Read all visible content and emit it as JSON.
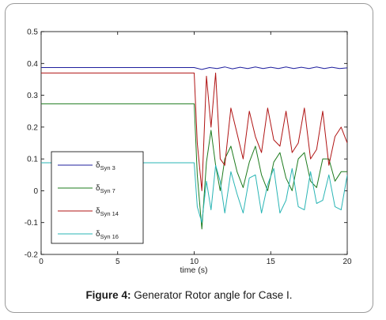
{
  "caption": {
    "label": "Figure 4:",
    "text": " Generator Rotor angle for Case I."
  },
  "chart_data": {
    "type": "line",
    "title": "",
    "xlabel": "time (s)",
    "ylabel": "",
    "xlim": [
      0,
      20
    ],
    "ylim": [
      -0.2,
      0.5
    ],
    "x_ticks": [
      0,
      5,
      10,
      15,
      20
    ],
    "y_ticks": [
      -0.2,
      -0.1,
      0,
      0.1,
      0.2,
      0.3,
      0.4,
      0.5
    ],
    "x_tick_labels": [
      "0",
      "5",
      "10",
      "15",
      "20"
    ],
    "y_tick_labels": [
      "-0.2",
      "-0.1",
      "0",
      "0.1",
      "0.2",
      "0.3",
      "0.4",
      "0.5"
    ],
    "grid": false,
    "legend_position": "lower-left",
    "series": [
      {
        "name": "δ",
        "name_sub": "Syn 3",
        "color": "#1f1f9e",
        "x": [
          0,
          10,
          10.5,
          11.0,
          11.5,
          12.0,
          12.5,
          13.0,
          13.5,
          14.0,
          14.5,
          15.0,
          15.5,
          16.0,
          16.5,
          17.0,
          17.5,
          18.0,
          18.5,
          19.0,
          19.5,
          20.0
        ],
        "y": [
          0.387,
          0.387,
          0.381,
          0.387,
          0.384,
          0.389,
          0.383,
          0.388,
          0.384,
          0.389,
          0.384,
          0.388,
          0.384,
          0.389,
          0.384,
          0.388,
          0.384,
          0.389,
          0.384,
          0.388,
          0.384,
          0.386
        ]
      },
      {
        "name": "δ",
        "name_sub": "Syn 7",
        "color": "#1e7b1e",
        "x": [
          0,
          10,
          10.2,
          10.5,
          10.8,
          11.1,
          11.4,
          11.7,
          12.0,
          12.4,
          12.8,
          13.2,
          13.6,
          14.0,
          14.4,
          14.8,
          15.2,
          15.6,
          16.0,
          16.4,
          16.8,
          17.2,
          17.6,
          18.0,
          18.4,
          18.8,
          19.2,
          19.6,
          20.0
        ],
        "y": [
          0.273,
          0.273,
          0.05,
          -0.12,
          0.09,
          0.19,
          0.08,
          0.0,
          0.1,
          0.14,
          0.06,
          0.01,
          0.09,
          0.14,
          0.05,
          0.0,
          0.09,
          0.12,
          0.04,
          0.0,
          0.1,
          0.12,
          0.03,
          0.01,
          0.1,
          0.1,
          0.03,
          0.06,
          0.06
        ]
      },
      {
        "name": "δ",
        "name_sub": "Syn 14",
        "color": "#b01414",
        "x": [
          0,
          10,
          10.2,
          10.5,
          10.8,
          11.1,
          11.4,
          11.7,
          12.0,
          12.4,
          12.8,
          13.2,
          13.6,
          14.0,
          14.4,
          14.8,
          15.2,
          15.6,
          16.0,
          16.4,
          16.8,
          17.2,
          17.6,
          18.0,
          18.4,
          18.8,
          19.2,
          19.6,
          20.0
        ],
        "y": [
          0.37,
          0.37,
          0.15,
          0.0,
          0.36,
          0.2,
          0.37,
          0.1,
          0.08,
          0.26,
          0.18,
          0.1,
          0.25,
          0.17,
          0.12,
          0.26,
          0.16,
          0.14,
          0.25,
          0.12,
          0.15,
          0.26,
          0.1,
          0.13,
          0.25,
          0.08,
          0.17,
          0.2,
          0.15
        ]
      },
      {
        "name": "δ",
        "name_sub": "Syn 16",
        "color": "#2ab5b5",
        "x": [
          0,
          10,
          10.2,
          10.5,
          10.8,
          11.1,
          11.4,
          11.7,
          12.0,
          12.4,
          12.8,
          13.2,
          13.6,
          14.0,
          14.4,
          14.8,
          15.2,
          15.6,
          16.0,
          16.4,
          16.8,
          17.2,
          17.6,
          18.0,
          18.4,
          18.8,
          19.2,
          19.6,
          20.0
        ],
        "y": [
          0.088,
          0.088,
          -0.05,
          -0.1,
          0.03,
          -0.06,
          0.08,
          0.03,
          -0.07,
          0.06,
          -0.01,
          -0.07,
          0.04,
          0.05,
          -0.07,
          0.02,
          0.07,
          -0.07,
          -0.03,
          0.07,
          -0.05,
          -0.06,
          0.06,
          -0.04,
          -0.03,
          0.05,
          -0.05,
          -0.06,
          0.05
        ]
      }
    ]
  }
}
